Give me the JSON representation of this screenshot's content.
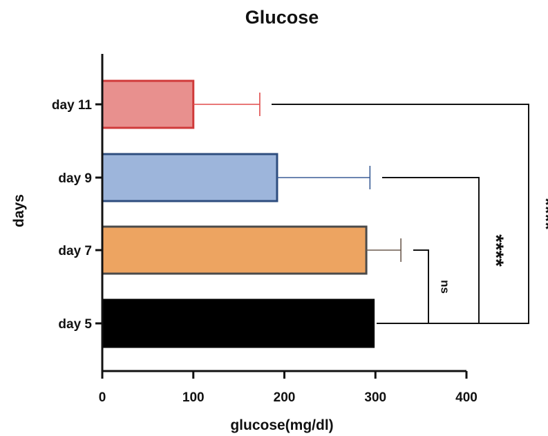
{
  "chart_data": {
    "type": "bar",
    "orientation": "horizontal",
    "title": "Glucose",
    "xlabel": "glucose(mg/dl)",
    "ylabel": "days",
    "categories": [
      "day 11",
      "day 9",
      "day 7",
      "day 5"
    ],
    "values": [
      100,
      192,
      290,
      298
    ],
    "error_plus": [
      73,
      102,
      38,
      0
    ],
    "colors": [
      "#e8908e",
      "#9db5db",
      "#eda461",
      "#000000"
    ],
    "edge_colors": [
      "#d03a3a",
      "#2e4d7e",
      "#4a4a4a",
      "#000000"
    ],
    "errorbar_colors": [
      "#e04a4a",
      "#3a5c95",
      "#6b5a4e",
      "#000000"
    ],
    "xlim": [
      0,
      400
    ],
    "xticks": [
      "0",
      "100",
      "200",
      "300",
      "400"
    ],
    "grid": false,
    "significance": [
      {
        "compare": [
          "day 7",
          "day 5"
        ],
        "label": "ns"
      },
      {
        "compare": [
          "day 9",
          "day 5"
        ],
        "label": "****"
      },
      {
        "compare": [
          "day 11",
          "day 5"
        ],
        "label": "****"
      }
    ]
  }
}
